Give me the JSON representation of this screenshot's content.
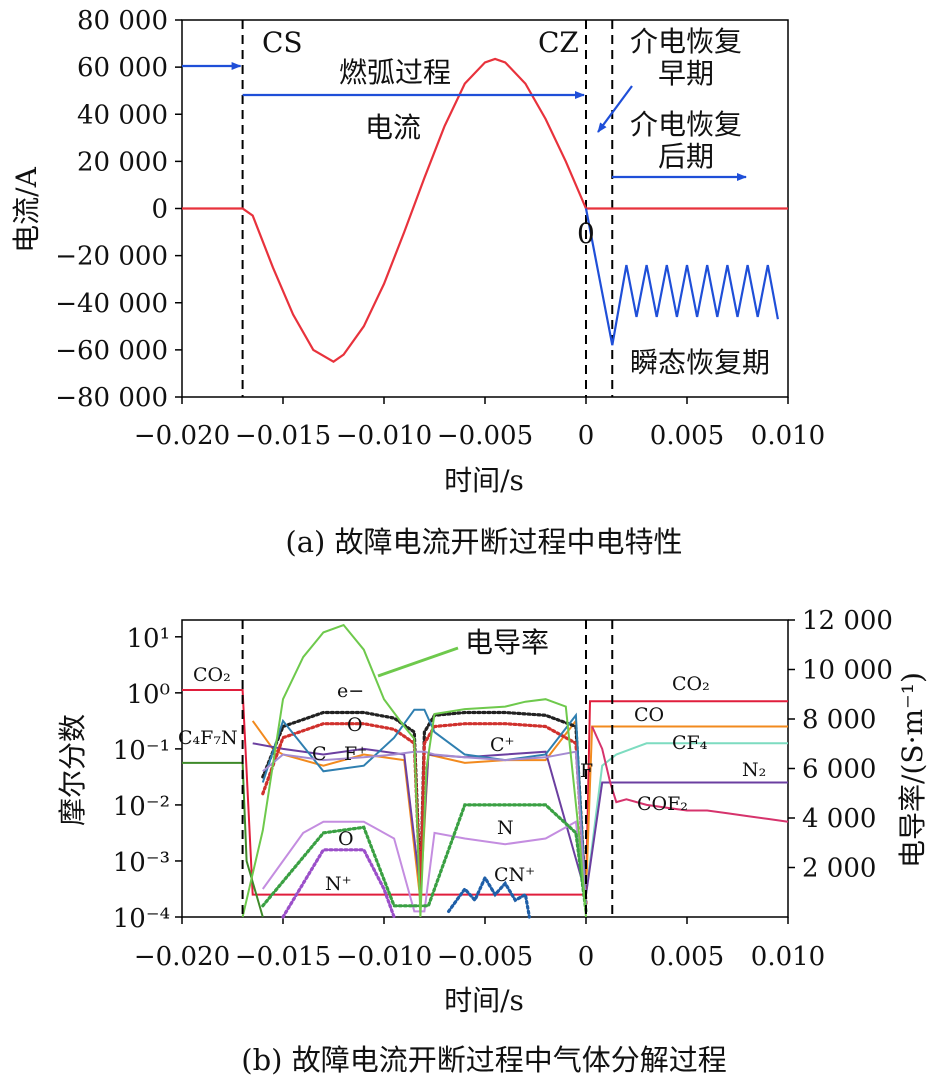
{
  "chart_data": [
    {
      "type": "line",
      "caption": "(a) 故障电流开断过程中电特性",
      "xlabel": "时间/s",
      "ylabel": "电流/A",
      "xlim": [
        -0.02,
        0.01
      ],
      "ylim": [
        -80000,
        80000
      ],
      "xticks": [
        -0.02,
        -0.015,
        -0.01,
        -0.005,
        0,
        0.005,
        0.01
      ],
      "xtick_labels": [
        "−0.020",
        "−0.015",
        "−0.010",
        "−0.005",
        "0",
        "0.005",
        "0.010"
      ],
      "yticks": [
        80000,
        60000,
        40000,
        20000,
        0,
        -20000,
        -40000,
        -60000,
        -80000
      ],
      "ytick_labels": [
        "80 000",
        "60 000",
        "40 000",
        "20 000",
        "0",
        "−20 000",
        "−40 000",
        "−60 000",
        "−80 000"
      ],
      "colors": {
        "current": "#e8323c",
        "voltage": "#1f4fd8",
        "arrow": "#1f4fd8"
      },
      "vlines": [
        -0.017,
        0,
        0.0013
      ],
      "series": [
        {
          "name": "电流",
          "x": [
            -0.02,
            -0.017,
            -0.0165,
            -0.0155,
            -0.0145,
            -0.0135,
            -0.0125,
            -0.012,
            -0.011,
            -0.01,
            -0.009,
            -0.008,
            -0.007,
            -0.006,
            -0.005,
            -0.0045,
            -0.004,
            -0.003,
            -0.002,
            -0.001,
            0,
            0.01
          ],
          "y": [
            0,
            0,
            -3000,
            -25000,
            -45000,
            -60000,
            -65000,
            -62000,
            -50000,
            -32000,
            -10000,
            13000,
            35000,
            53000,
            62000,
            63500,
            62000,
            53000,
            38000,
            20000,
            0,
            0
          ]
        },
        {
          "x": [
            0,
            0.0013,
            0.002,
            0.0025,
            0.003,
            0.0035,
            0.004,
            0.0045,
            0.005,
            0.0055,
            0.006,
            0.0065,
            0.007,
            0.0075,
            0.008,
            0.0085,
            0.009,
            0.0095
          ],
          "y": [
            0,
            -58000,
            -24000,
            -46000,
            -24000,
            -46000,
            -24000,
            -46000,
            -24000,
            -46000,
            -24000,
            -46000,
            -24000,
            -46000,
            -24000,
            -46000,
            -24000,
            -47000
          ]
        }
      ],
      "annotations": {
        "cs": "CS",
        "cz": "CZ",
        "arc": "燃弧过程",
        "current": "电流",
        "early": "介电恢复\n早期",
        "late": "介电恢复\n后期",
        "zero": "0",
        "trv": "瞬态恢复期"
      }
    },
    {
      "type": "line",
      "caption": "(b) 故障电流开断过程中气体分解过程",
      "xlabel": "时间/s",
      "ylabel": "摩尔分数",
      "y2label": "电导率/(S·m⁻¹)",
      "xlim": [
        -0.02,
        0.01
      ],
      "ylim_log10": [
        -4,
        1.3
      ],
      "y2lim": [
        0,
        12000
      ],
      "yscale": "log",
      "xticks": [
        -0.02,
        -0.015,
        -0.01,
        -0.005,
        0,
        0.005,
        0.01
      ],
      "xtick_labels": [
        "−0.020",
        "−0.015",
        "−0.010",
        "−0.005",
        "0",
        "0.005",
        "0.010"
      ],
      "yticks_log10": [
        1,
        0,
        -1,
        -2,
        -3,
        -4
      ],
      "ytick_labels": [
        "10¹",
        "10⁰",
        "10⁻¹",
        "10⁻²",
        "10⁻³",
        "10⁻⁴"
      ],
      "y2ticks": [
        12000,
        10000,
        8000,
        6000,
        4000,
        2000
      ],
      "y2tick_labels": [
        "12 000",
        "10 000",
        "8 000",
        "6 000",
        "4 000",
        "2 000"
      ],
      "vlines": [
        -0.017,
        0,
        0.0013
      ],
      "series": [
        {
          "name": "CO₂",
          "color": "#e01e3c",
          "x": [
            -0.02,
            -0.017,
            -0.0165,
            0,
            0.0002,
            0.01
          ],
          "log10y": [
            0.05,
            0.05,
            -3.6,
            -3.6,
            -0.15,
            -0.15
          ]
        },
        {
          "name": "CO",
          "color": "#f28a1e",
          "x": [
            -0.0165,
            -0.0155,
            -0.015,
            -0.013,
            -0.011,
            -0.009,
            -0.0082,
            -0.0078,
            -0.006,
            -0.004,
            -0.002,
            -0.0005,
            0,
            0.0003,
            0.01
          ],
          "log10y": [
            -0.5,
            -1.0,
            -1.1,
            -1.3,
            -1.1,
            -1.2,
            -3.7,
            -1.1,
            -1.25,
            -1.2,
            -1.2,
            -0.5,
            -3.6,
            -0.6,
            -0.6
          ]
        },
        {
          "name": "CF₄",
          "color": "#7ddcc0",
          "x": [
            0,
            0.0008,
            0.0015,
            0.003,
            0.01
          ],
          "log10y": [
            -3.6,
            -1.3,
            -1.1,
            -0.9,
            -0.9
          ]
        },
        {
          "name": "N₂",
          "color": "#6b3fa0",
          "x": [
            -0.0165,
            -0.015,
            -0.013,
            -0.011,
            -0.009,
            -0.0082,
            -0.0078,
            -0.006,
            -0.004,
            -0.002,
            0,
            0.0008,
            0.01
          ],
          "log10y": [
            -0.9,
            -1.0,
            -1.1,
            -1.0,
            -1.1,
            -3.5,
            -1.1,
            -1.15,
            -1.1,
            -1.05,
            -3.6,
            -1.6,
            -1.6
          ]
        },
        {
          "name": "C₄F₇N",
          "color": "#3f8a2a",
          "x": [
            -0.02,
            -0.017,
            -0.0168,
            -0.016
          ],
          "log10y": [
            -1.25,
            -1.25,
            -3.0,
            -4.0
          ]
        },
        {
          "name": "COF₂",
          "color": "#d6336c",
          "x": [
            0.0003,
            0.0008,
            0.0012,
            0.0015,
            0.002,
            0.003,
            0.004,
            0.005,
            0.006,
            0.007,
            0.008,
            0.009,
            0.01
          ],
          "log10y": [
            -0.6,
            -1.0,
            -1.6,
            -1.95,
            -1.9,
            -2.0,
            -2.05,
            -2.1,
            -2.1,
            -2.15,
            -2.2,
            -2.25,
            -2.3
          ]
        },
        {
          "name": "e⁻",
          "color": "#222222",
          "dotted": true,
          "x": [
            -0.016,
            -0.015,
            -0.013,
            -0.011,
            -0.0095,
            -0.0085,
            -0.0082,
            -0.008,
            -0.0075,
            -0.006,
            -0.004,
            -0.002,
            -0.0005,
            0
          ],
          "log10y": [
            -1.5,
            -0.6,
            -0.35,
            -0.35,
            -0.45,
            -0.7,
            -3.5,
            -0.7,
            -0.4,
            -0.35,
            -0.35,
            -0.4,
            -0.6,
            -3.8
          ]
        },
        {
          "name": "O",
          "color": "#d0312d",
          "dotted": true,
          "x": [
            -0.016,
            -0.015,
            -0.013,
            -0.011,
            -0.0095,
            -0.0085,
            -0.0082,
            -0.008,
            -0.0075,
            -0.006,
            -0.004,
            -0.002,
            -0.0005,
            0
          ],
          "log10y": [
            -1.8,
            -0.8,
            -0.55,
            -0.55,
            -0.65,
            -0.9,
            -3.6,
            -0.9,
            -0.6,
            -0.55,
            -0.55,
            -0.6,
            -0.9,
            -3.8
          ]
        },
        {
          "name": "C⁺",
          "color": "#2f7fb0",
          "x": [
            -0.016,
            -0.015,
            -0.013,
            -0.011,
            -0.0095,
            -0.0085,
            -0.008,
            -0.0075,
            -0.006,
            -0.004,
            -0.002,
            -0.0005,
            0
          ],
          "log10y": [
            -1.6,
            -0.5,
            -1.4,
            -1.3,
            -0.8,
            -0.3,
            -0.3,
            -0.7,
            -1.1,
            -1.2,
            -1.1,
            -0.4,
            -3.8
          ]
        },
        {
          "name": "F⁺",
          "color": "#a58bd1",
          "x": [
            -0.016,
            -0.015,
            -0.013,
            -0.011,
            -0.0095,
            -0.0085,
            -0.008,
            -0.0075,
            -0.006,
            -0.004,
            -0.002,
            -0.0005,
            0
          ],
          "log10y": [
            -1.4,
            -1.1,
            -1.2,
            -1.15,
            -1.1,
            -1.05,
            -1.05,
            -1.1,
            -1.15,
            -1.2,
            -1.15,
            -1.05,
            -3.8
          ]
        },
        {
          "name": "N",
          "color": "#c48de0",
          "x": [
            -0.016,
            -0.014,
            -0.013,
            -0.011,
            -0.0095,
            -0.0085,
            -0.008,
            -0.0075,
            -0.006,
            -0.004,
            -0.002,
            -0.0005,
            0
          ],
          "log10y": [
            -3.5,
            -2.5,
            -2.3,
            -2.3,
            -2.6,
            -3.9,
            -3.9,
            -2.5,
            -2.6,
            -2.7,
            -2.6,
            -2.3,
            -3.9
          ]
        },
        {
          "name": "N⁺",
          "color": "#9b4fc9",
          "dotted": true,
          "x": [
            -0.015,
            -0.013,
            -0.011,
            -0.01,
            -0.0095
          ],
          "log10y": [
            -4.0,
            -2.8,
            -2.8,
            -3.5,
            -4.0
          ]
        },
        {
          "name": "C",
          "color": "#3aa043",
          "dotted": true,
          "x": [
            -0.016,
            -0.013,
            -0.011,
            -0.0095,
            -0.0078,
            -0.006,
            -0.004,
            -0.002,
            -0.0005,
            0
          ],
          "log10y": [
            -3.8,
            -2.5,
            -2.4,
            -3.8,
            -3.8,
            -2.0,
            -2.0,
            -2.0,
            -2.5,
            -3.9
          ]
        },
        {
          "name": "CN⁺",
          "color": "#1f5fa8",
          "dotted": true,
          "x": [
            -0.0068,
            -0.006,
            -0.0055,
            -0.005,
            -0.0045,
            -0.004,
            -0.0035,
            -0.003,
            -0.0028
          ],
          "log10y": [
            -3.9,
            -3.5,
            -3.7,
            -3.3,
            -3.6,
            -3.4,
            -3.7,
            -3.6,
            -4.0
          ]
        },
        {
          "name": "电导率",
          "color": "#6ec94c",
          "axis": "right",
          "x": [
            -0.017,
            -0.016,
            -0.015,
            -0.014,
            -0.013,
            -0.012,
            -0.011,
            -0.01,
            -0.009,
            -0.0085,
            -0.0082,
            -0.0079,
            -0.0075,
            -0.006,
            -0.004,
            -0.003,
            -0.002,
            -0.001,
            -0.0003,
            0.0
          ],
          "y": [
            0,
            3500,
            8800,
            10500,
            11500,
            11800,
            10800,
            8800,
            7700,
            7200,
            0,
            6000,
            8200,
            8400,
            8500,
            8700,
            8800,
            8500,
            3000,
            0
          ]
        }
      ],
      "annotations": {
        "conductivity": "电导率",
        "CO2_left": "CO₂",
        "C4F7N": "C₄F₇N",
        "e": "e−",
        "O_upper": "O",
        "C": "C",
        "Fplus": "F⁺",
        "O_lower": "O",
        "Nplus": "N⁺",
        "Cplus": "C⁺",
        "F": "F",
        "N": "N",
        "CNplus": "CN⁺",
        "CO2_right": "CO₂",
        "CO": "CO",
        "CF4": "CF₄",
        "N2": "N₂",
        "COF2": "COF₂"
      }
    }
  ]
}
